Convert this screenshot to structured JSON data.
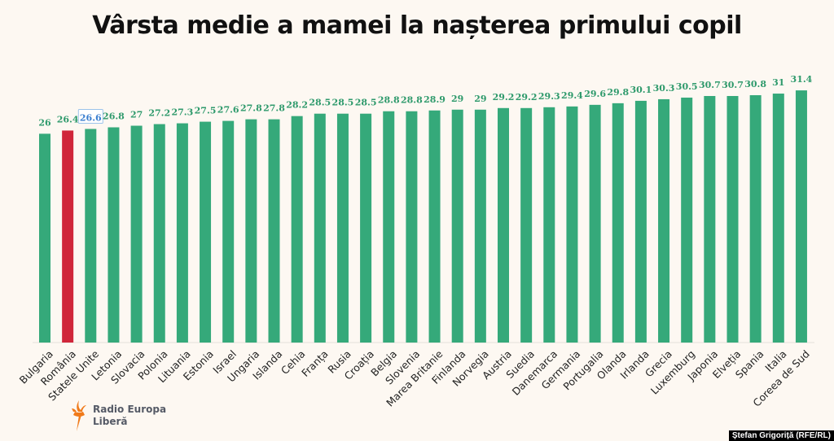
{
  "chart_data": {
    "type": "bar",
    "title": "Vârsta medie a mamei la nașterea primului copil",
    "categories": [
      "Bulgaria",
      "România",
      "Statele Unite",
      "Letonia",
      "Slovacia",
      "Polonia",
      "Lituania",
      "Estonia",
      "Israel",
      "Ungaria",
      "Islanda",
      "Cehia",
      "Franța",
      "Rusia",
      "Croația",
      "Belgia",
      "Slovenia",
      "Marea Britanie",
      "Finlanda",
      "Norvegia",
      "Austria",
      "Suedia",
      "Danemarca",
      "Germania",
      "Portugalia",
      "Olanda",
      "Irlanda",
      "Grecia",
      "Luxemburg",
      "Japonia",
      "Elveția",
      "Spania",
      "Italia",
      "Coreea de Sud"
    ],
    "values": [
      26,
      26.4,
      26.6,
      26.8,
      27,
      27.2,
      27.3,
      27.5,
      27.6,
      27.8,
      27.8,
      28.2,
      28.5,
      28.5,
      28.5,
      28.8,
      28.8,
      28.9,
      29,
      29,
      29.2,
      29.2,
      29.3,
      29.4,
      29.6,
      29.8,
      30.1,
      30.3,
      30.5,
      30.7,
      30.7,
      30.8,
      31,
      31.4
    ],
    "highlight": "România",
    "boxed_label": "Statele Unite",
    "colors": {
      "bar": "#35a97a",
      "highlight": "#d0263a",
      "label": "#2f9a6c",
      "boxed_label": "#3b7fcf"
    },
    "ylim": [
      0,
      31.4
    ],
    "grid": false,
    "legend": "none"
  },
  "logo": {
    "line1": "Radio Europa",
    "line2": "Liberă"
  },
  "credit": "Ștefan Grigoriță (RFE/RL)"
}
